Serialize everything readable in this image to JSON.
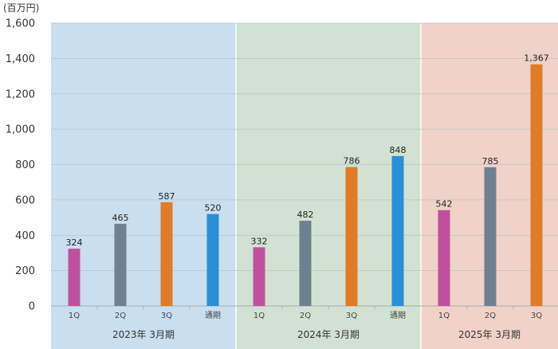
{
  "chart_data": {
    "type": "bar",
    "unit_label": "(百万円)",
    "ylim": [
      0,
      1600
    ],
    "yticks": [
      0,
      200,
      400,
      600,
      800,
      1000,
      1200,
      1400,
      1600
    ],
    "ytick_labels": [
      "0",
      "200",
      "400",
      "600",
      "800",
      "1,000",
      "1,200",
      "1,400",
      "1,600"
    ],
    "grid": true,
    "groups": [
      {
        "label": "2023年 3月期",
        "background": "#c9dff0",
        "bars": [
          {
            "category": "1Q",
            "value": 324,
            "value_label": "324",
            "color": "#c0509e"
          },
          {
            "category": "2Q",
            "value": 465,
            "value_label": "465",
            "color": "#6f8090"
          },
          {
            "category": "3Q",
            "value": 587,
            "value_label": "587",
            "color": "#e07b28"
          },
          {
            "category": "通期",
            "value": 520,
            "value_label": "520",
            "color": "#2a8fd6"
          }
        ]
      },
      {
        "label": "2024年 3月期",
        "background": "#d2e2d2",
        "bars": [
          {
            "category": "1Q",
            "value": 332,
            "value_label": "332",
            "color": "#c0509e"
          },
          {
            "category": "2Q",
            "value": 482,
            "value_label": "482",
            "color": "#6f8090"
          },
          {
            "category": "3Q",
            "value": 786,
            "value_label": "786",
            "color": "#e07b28"
          },
          {
            "category": "通期",
            "value": 848,
            "value_label": "848",
            "color": "#2a8fd6"
          }
        ]
      },
      {
        "label": "2025年 3月期",
        "background": "#f0d2c8",
        "bars": [
          {
            "category": "1Q",
            "value": 542,
            "value_label": "542",
            "color": "#c0509e"
          },
          {
            "category": "2Q",
            "value": 785,
            "value_label": "785",
            "color": "#6f8090"
          },
          {
            "category": "3Q",
            "value": 1367,
            "value_label": "1,367",
            "color": "#e07b28"
          }
        ]
      }
    ]
  }
}
